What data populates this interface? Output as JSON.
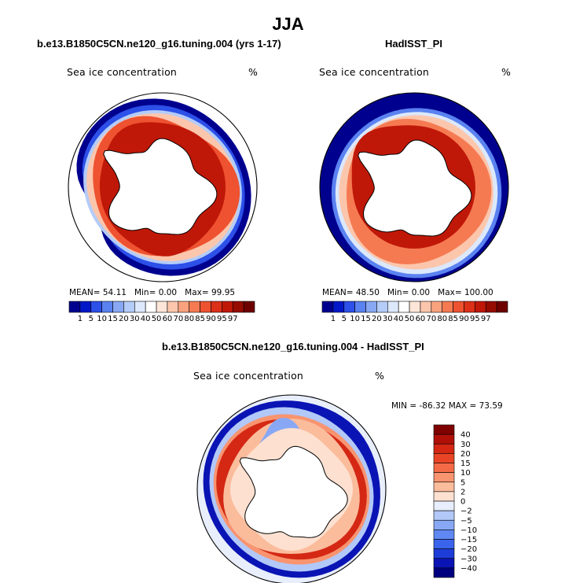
{
  "page": {
    "title": "JJA",
    "diff_title": "b.e13.B1850C5CN.ne120_g16.tuning.004 - HadISST_PI"
  },
  "colors": {
    "abs_scale": [
      "#00008f",
      "#0018c8",
      "#2c50e8",
      "#5a82f0",
      "#88a8f4",
      "#b4ccf8",
      "#dce8fb",
      "#ffffff",
      "#fde6d8",
      "#fcc6ac",
      "#f9a27e",
      "#f57a52",
      "#ee5230",
      "#dc3018",
      "#c01808",
      "#960c00",
      "#6e0000"
    ],
    "diff_scale": [
      "#00007e",
      "#0a14b4",
      "#1e3cd8",
      "#3a64ec",
      "#6088f2",
      "#88a8f6",
      "#b2c8f8",
      "#e8eefb",
      "#fde0d0",
      "#fbbc9c",
      "#f89470",
      "#f46a46",
      "#ea4426",
      "#d42814",
      "#b01008",
      "#800000"
    ]
  },
  "chart_data": [
    {
      "type": "heatmap",
      "projection": "south-polar-stereographic",
      "title": "b.e13.B1850C5CN.ne120_g16.tuning.004 (yrs 1-17)",
      "variable": "Sea ice concentration",
      "units": "%",
      "stats": {
        "mean_label": "MEAN=",
        "mean": "54.11",
        "min_label": "Min=",
        "min": "0.00",
        "max_label": "Max=",
        "max": "99.95"
      },
      "colorbar": {
        "orientation": "horizontal",
        "levels": [
          "1",
          "5",
          "10",
          "15",
          "20",
          "30",
          "40",
          "50",
          "60",
          "70",
          "80",
          "85",
          "90",
          "95",
          "97"
        ]
      }
    },
    {
      "type": "heatmap",
      "projection": "south-polar-stereographic",
      "title": "HadISST_PI",
      "variable": "Sea ice concentration",
      "units": "%",
      "stats": {
        "mean_label": "MEAN=",
        "mean": "48.50",
        "min_label": "Min=",
        "min": "0.00",
        "max_label": "Max=",
        "max": "100.00"
      },
      "colorbar": {
        "orientation": "horizontal",
        "levels": [
          "1",
          "5",
          "10",
          "15",
          "20",
          "30",
          "40",
          "50",
          "60",
          "70",
          "80",
          "85",
          "90",
          "95",
          "97"
        ]
      }
    },
    {
      "type": "heatmap",
      "projection": "south-polar-stereographic",
      "title": "b.e13.B1850C5CN.ne120_g16.tuning.004 - HadISST_PI",
      "variable": "Sea ice concentration",
      "units": "%",
      "stats": {
        "min_label": "MIN =",
        "min": "-86.32",
        "max_label": "MAX =",
        "max": "73.59"
      },
      "colorbar": {
        "orientation": "vertical",
        "levels": [
          "40",
          "30",
          "20",
          "15",
          "10",
          "5",
          "2",
          "0",
          "−2",
          "−5",
          "−10",
          "−15",
          "−20",
          "−30",
          "−40"
        ]
      }
    }
  ]
}
